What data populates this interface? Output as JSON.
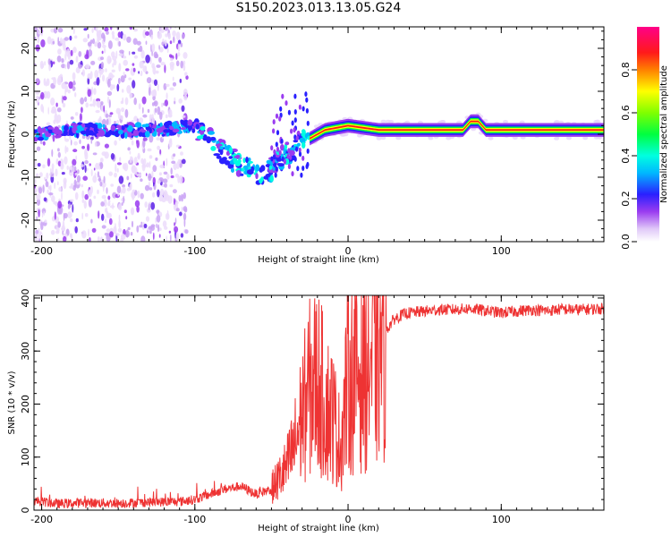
{
  "title": "S150.2023.013.13.05.G24",
  "colors": {
    "snr_line": "#ee3333",
    "axis": "#000000"
  },
  "chart_data": [
    {
      "type": "heatmap",
      "xlabel": "Height of straight line (km)",
      "ylabel": "Frequency (Hz)",
      "xlim": [
        -205,
        167
      ],
      "ylim": [
        -25,
        25
      ],
      "x_ticks": [
        -200,
        -100,
        0,
        100
      ],
      "y_ticks": [
        -20,
        -10,
        0,
        10,
        20
      ],
      "colorbar": {
        "label": "Normalized spectral amplitude",
        "range": [
          0,
          1
        ],
        "ticks": [
          0.0,
          0.2,
          0.4,
          0.6,
          0.8
        ]
      },
      "ridge": {
        "x": [
          -200,
          -180,
          -160,
          -140,
          -120,
          -105,
          -95,
          -85,
          -75,
          -65,
          -55,
          -45,
          -35,
          -30,
          -25,
          -15,
          0,
          20,
          40,
          60,
          75,
          80,
          85,
          90,
          100,
          120,
          140,
          167
        ],
        "freq": [
          0,
          1,
          1,
          1,
          1,
          2,
          1,
          -3,
          -6,
          -8,
          -10,
          -6,
          -3,
          -1,
          -1,
          1,
          2,
          1,
          1,
          1,
          1,
          3,
          3,
          1,
          1,
          1,
          1,
          1
        ]
      }
    },
    {
      "type": "line",
      "xlabel": "Height of straight line (km)",
      "ylabel": "SNR (10 * v/v)",
      "xlim": [
        -205,
        167
      ],
      "ylim": [
        0,
        405
      ],
      "x_ticks": [
        -200,
        -100,
        0,
        100
      ],
      "y_ticks": [
        0,
        100,
        200,
        300,
        400
      ],
      "series": [
        {
          "x": [
            -205,
            -190,
            -170,
            -150,
            -130,
            -110,
            -100,
            -90,
            -80,
            -70,
            -60,
            -50,
            -40,
            -35,
            -30,
            -25,
            -20,
            -15,
            -10,
            -5,
            0,
            5,
            10,
            15,
            20,
            25,
            30,
            35,
            40,
            50,
            60,
            70,
            80,
            90,
            100,
            110,
            120,
            130,
            140,
            150,
            167
          ],
          "snr": [
            18,
            12,
            14,
            13,
            15,
            16,
            20,
            30,
            40,
            45,
            30,
            40,
            80,
            120,
            180,
            230,
            250,
            200,
            180,
            120,
            250,
            260,
            270,
            280,
            310,
            340,
            360,
            368,
            372,
            375,
            378,
            378,
            380,
            376,
            372,
            375,
            378,
            376,
            379,
            378,
            380
          ]
        }
      ]
    }
  ]
}
